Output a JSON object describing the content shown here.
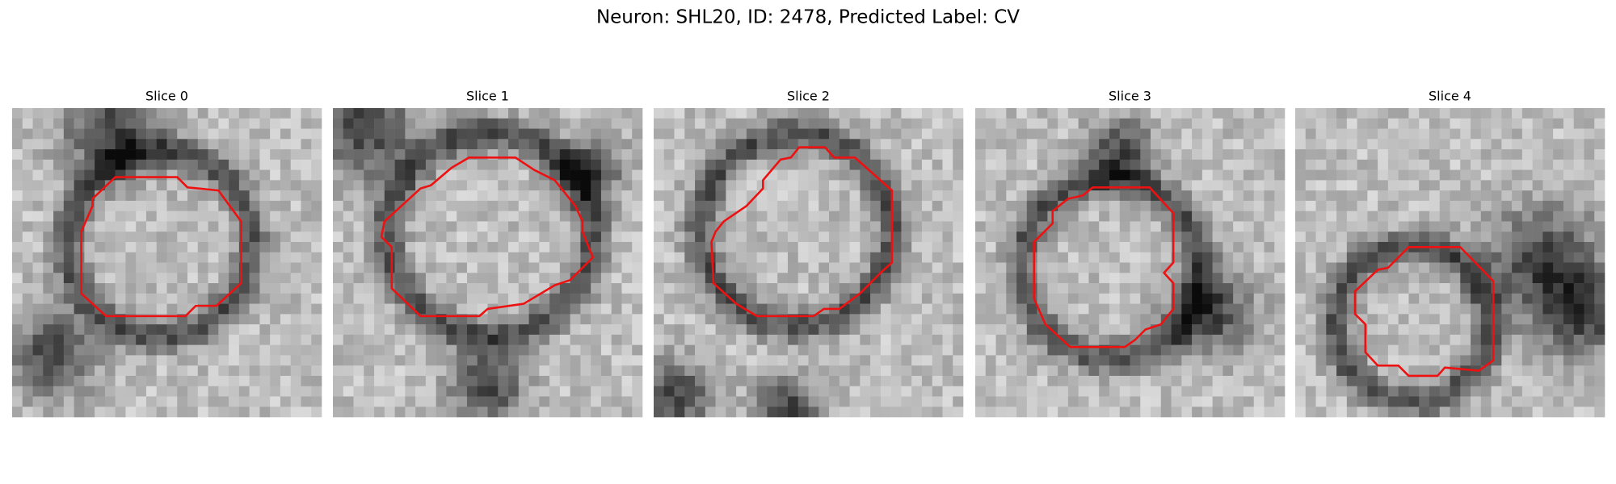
{
  "header": {
    "title": "Neuron: SHL20, ID: 2478, Predicted Label: CV"
  },
  "panels": [
    {
      "title": "Slice 0"
    },
    {
      "title": "Slice 1"
    },
    {
      "title": "Slice 2"
    },
    {
      "title": "Slice 3"
    },
    {
      "title": "Slice 4"
    }
  ]
}
